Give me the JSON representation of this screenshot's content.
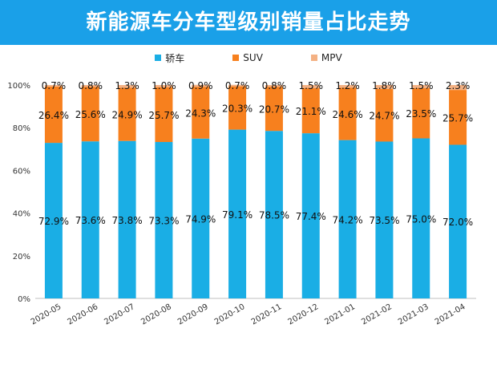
{
  "title": "新能源车分车型级别销量占比走势",
  "colors": {
    "title_bg": "#1aa0e8"
  },
  "chart_data": {
    "type": "bar",
    "stacked": true,
    "categories": [
      "2020-05",
      "2020-06",
      "2020-07",
      "2020-08",
      "2020-09",
      "2020-10",
      "2020-11",
      "2020-12",
      "2021-01",
      "2021-02",
      "2021-03",
      "2021-04"
    ],
    "series": [
      {
        "name": "轿车",
        "color": "#1aaee5",
        "values": [
          72.9,
          73.6,
          73.8,
          73.3,
          74.9,
          79.1,
          78.5,
          77.4,
          74.2,
          73.5,
          75.0,
          72.0
        ],
        "labels": [
          "72.9%",
          "73.6%",
          "73.8%",
          "73.3%",
          "74.9%",
          "79.1%",
          "78.5%",
          "77.4%",
          "74.2%",
          "73.5%",
          "75.0%",
          "72.0%"
        ]
      },
      {
        "name": "SUV",
        "color": "#f7801e",
        "values": [
          26.4,
          25.6,
          24.9,
          25.7,
          24.3,
          20.3,
          20.7,
          21.1,
          24.6,
          24.7,
          23.5,
          25.7
        ],
        "labels": [
          "26.4%",
          "25.6%",
          "24.9%",
          "25.7%",
          "24.3%",
          "20.3%",
          "20.7%",
          "21.1%",
          "24.6%",
          "24.7%",
          "23.5%",
          "25.7%"
        ]
      },
      {
        "name": "MPV",
        "color": "#f4b183",
        "values": [
          0.7,
          0.8,
          1.3,
          1.0,
          0.9,
          0.7,
          0.8,
          1.5,
          1.2,
          1.8,
          1.5,
          2.3
        ],
        "labels": [
          "0.7%",
          "0.8%",
          "1.3%",
          "1.0%",
          "0.9%",
          "0.7%",
          "0.8%",
          "1.5%",
          "1.2%",
          "1.8%",
          "1.5%",
          "2.3%"
        ]
      }
    ],
    "y_ticks": [
      "0%",
      "20%",
      "40%",
      "60%",
      "80%",
      "100%"
    ],
    "ylim": [
      0,
      100
    ],
    "legend_position": "top",
    "grid": false
  }
}
